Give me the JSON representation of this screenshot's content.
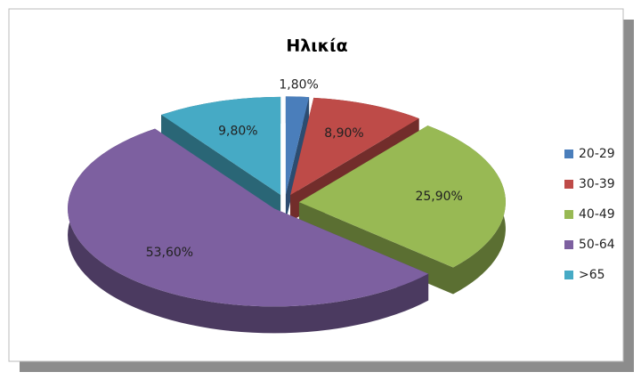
{
  "chart_data": {
    "type": "pie",
    "title": "Ηλικία",
    "categories": [
      "20-29",
      "30-39",
      "40-49",
      "50-64",
      ">65"
    ],
    "values": [
      1.8,
      8.9,
      25.9,
      53.6,
      9.8
    ],
    "value_labels": [
      "1,80%",
      "8,90%",
      "25,90%",
      "53,60%",
      "9,80%"
    ],
    "colors": [
      "#4a7ebb",
      "#be4b48",
      "#98b954",
      "#7d60a0",
      "#46aac5"
    ],
    "legend": "right"
  }
}
